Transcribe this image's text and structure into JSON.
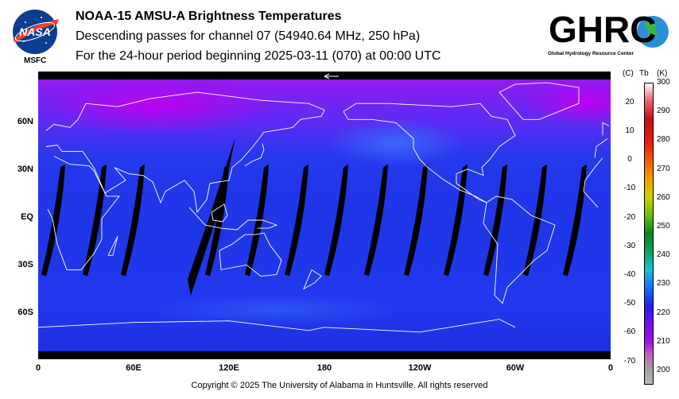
{
  "header": {
    "title": "NOAA-15 AMSU-A Brightness Temperatures",
    "subtitle": "Descending passes for channel 07 (54940.64 MHz, 250 hPa)",
    "period": "For the 24-hour period beginning 2025-03-11 (070) at 00:00 UTC"
  },
  "logos": {
    "nasa_text": "NASA",
    "nasa_sub": "MSFC",
    "ghrc_text": "GHRC",
    "ghrc_sub": "Global Hydrology Resource Center"
  },
  "map": {
    "lat_labels": [
      "60N",
      "30N",
      "EQ",
      "30S",
      "60S"
    ],
    "lon_labels": [
      "0",
      "60E",
      "120E",
      "180",
      "120W",
      "60W",
      "0"
    ],
    "swath_centers_lon": [
      12,
      38,
      62,
      115,
      140,
      165,
      190,
      215,
      240,
      265,
      290,
      315,
      340
    ],
    "colors": {
      "background": "#1a2fe6",
      "cold_high_lat": "#a020f0",
      "gap": "#000000",
      "coastline": "#ffffff"
    }
  },
  "colorbar": {
    "header_c": "(C)",
    "header_tb": "Tb",
    "header_k": "(K)",
    "celsius_ticks": [
      "20",
      "10",
      "0",
      "-10",
      "-20",
      "-30",
      "-40",
      "-50",
      "-60",
      "-70"
    ],
    "kelvin_ticks": [
      "300",
      "290",
      "280",
      "270",
      "260",
      "250",
      "240",
      "230",
      "220",
      "210",
      "200"
    ],
    "range_k": [
      195,
      300
    ]
  },
  "footer": {
    "copyright": "Copyright © 2025 The University of Alabama in Huntsville.  All rights reserved"
  }
}
